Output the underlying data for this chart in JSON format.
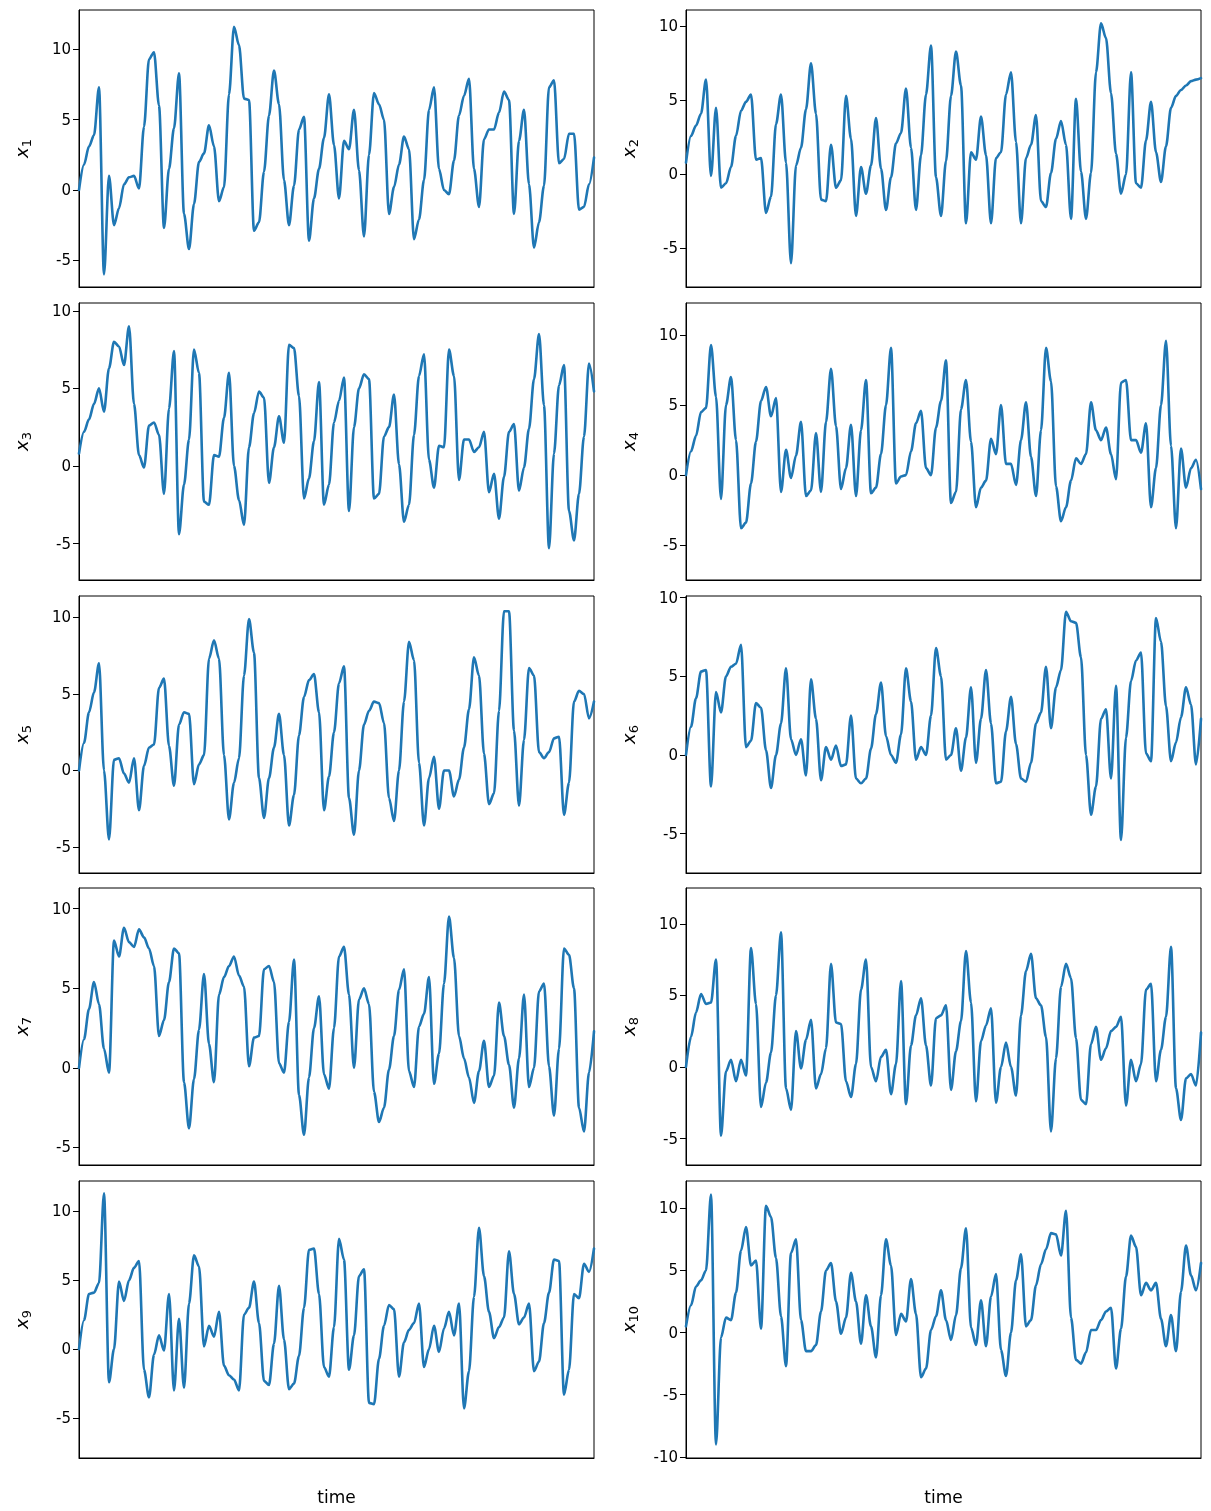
{
  "chart_data": [
    {
      "type": "line",
      "ylabel": "x$_{1}$",
      "categories": [
        null,
        null,
        null,
        null,
        null,
        null,
        null,
        null,
        null,
        null,
        null,
        null,
        null,
        null,
        null,
        null,
        null,
        null,
        null,
        null,
        null,
        null,
        null,
        null,
        null,
        null,
        null,
        null,
        null,
        null,
        null,
        null,
        null,
        null,
        null,
        null,
        null,
        null,
        null,
        null,
        null,
        null,
        null,
        null,
        null,
        null,
        null,
        null,
        null,
        null,
        null,
        null,
        null,
        null,
        null,
        null,
        null,
        null,
        null,
        null,
        null,
        null,
        null,
        null,
        null,
        null,
        null,
        null,
        null,
        null,
        null,
        null,
        null,
        null,
        null,
        null,
        null,
        null,
        null,
        null,
        null,
        null,
        null,
        null,
        null,
        null,
        null,
        null,
        null,
        null,
        null,
        null,
        null,
        null,
        null,
        null,
        null,
        null,
        null,
        null,
        null,
        null,
        null,
        null
      ],
      "ylim": [
        -6.9,
        12.8
      ],
      "yticks": [
        -5,
        0,
        5,
        10
      ],
      "tick_labels": "y",
      "series": [
        {
          "color": "#1f77b4",
          "values": [
            0,
            1.8,
            3.1,
            3.9,
            7.3,
            -6,
            1,
            -2.5,
            -1.3,
            0.4,
            0.9,
            1,
            0.1,
            4.5,
            9.3,
            9.8,
            6,
            -2.7,
            1.5,
            4.4,
            8.3,
            -1.7,
            -4.2,
            -1,
            2,
            2.6,
            4.6,
            3.1,
            -0.8,
            0.2,
            6.8,
            11.6,
            10.3,
            6.5,
            6.4,
            -2.9,
            -2.3,
            1.3,
            5.3,
            8.5,
            6.1,
            0.7,
            -2.5,
            0.3,
            4.3,
            5.2,
            -3.6,
            -0.6,
            1.5,
            3.7,
            6.8,
            3.2,
            -0.6,
            3.5,
            2.9,
            5.7,
            1.4,
            -3.3,
            2.5,
            6.9,
            6.1,
            5,
            -1.7,
            0.2,
            1.8,
            3.8,
            2.9,
            -3.5,
            -2.1,
            0.7,
            5.7,
            7.3,
            1.5,
            0,
            -0.3,
            2.1,
            5.3,
            6.7,
            7.9,
            1.5,
            -1.2,
            3.6,
            4.3,
            4.3,
            5.5,
            7,
            6.4,
            -1.7,
            3.5,
            5.7,
            0.4,
            -4.1,
            -2.3,
            0.3,
            7.3,
            7.8,
            1.9,
            2.2,
            4,
            4,
            -1.4,
            -1.2,
            0.4,
            2.3
          ]
        }
      ]
    },
    {
      "type": "line",
      "ylabel": "x$_{2}$",
      "categories": [
        null,
        null,
        null,
        null,
        null,
        null,
        null,
        null,
        null,
        null,
        null,
        null,
        null,
        null,
        null,
        null,
        null,
        null,
        null,
        null,
        null,
        null,
        null,
        null,
        null,
        null,
        null,
        null,
        null,
        null,
        null,
        null,
        null,
        null,
        null,
        null,
        null,
        null,
        null,
        null,
        null,
        null,
        null,
        null,
        null,
        null,
        null,
        null,
        null,
        null,
        null,
        null,
        null,
        null,
        null,
        null,
        null,
        null,
        null,
        null,
        null,
        null,
        null,
        null,
        null,
        null,
        null,
        null,
        null,
        null,
        null,
        null,
        null,
        null,
        null,
        null,
        null,
        null,
        null,
        null,
        null,
        null,
        null,
        null,
        null,
        null,
        null,
        null,
        null,
        null,
        null,
        null,
        null,
        null,
        null,
        null,
        null,
        null,
        null,
        null,
        null,
        null,
        null,
        null
      ],
      "ylim": [
        -7.6,
        11.1
      ],
      "yticks": [
        -5,
        0,
        5,
        10
      ],
      "tick_labels": "y",
      "series": [
        {
          "color": "#1f77b4",
          "values": [
            0.8,
            2.6,
            3.3,
            4.1,
            6.4,
            -0.1,
            4.5,
            -0.9,
            -0.6,
            0.5,
            2.6,
            4.3,
            4.9,
            5.4,
            1,
            1.1,
            -2.6,
            -1.5,
            3.4,
            5.4,
            0.8,
            -6,
            0.6,
            1.8,
            4.4,
            7.5,
            4.1,
            -1.7,
            -1.8,
            2,
            -0.9,
            -0.4,
            5.3,
            2.4,
            -2.8,
            0.5,
            -1.3,
            0.6,
            3.8,
            0.4,
            -2.4,
            -0.2,
            2.1,
            2.8,
            5.8,
            1.8,
            -2.4,
            1.3,
            5.4,
            8.7,
            -0.2,
            -2.8,
            0.9,
            5.3,
            8.3,
            6,
            -3.3,
            1.5,
            1,
            3.9,
            1.3,
            -3.3,
            1.1,
            1.5,
            5.4,
            6.9,
            2.2,
            -3.3,
            1.1,
            2,
            4,
            -1.8,
            -2.2,
            0.1,
            2.4,
            3.6,
            2,
            -3,
            5.1,
            0.2,
            -3,
            0.1,
            6.9,
            10.2,
            9.2,
            5.5,
            1.4,
            -1.3,
            0,
            6.9,
            -0.6,
            -0.9,
            2.3,
            4.9,
            1.5,
            -0.5,
            1.9,
            4.5,
            5.3,
            5.7,
            6,
            6.3,
            6.4,
            6.5
          ]
        }
      ]
    },
    {
      "type": "line",
      "ylabel": "x$_{3}$",
      "categories": [
        null,
        null,
        null,
        null,
        null,
        null,
        null,
        null,
        null,
        null,
        null,
        null,
        null,
        null,
        null,
        null,
        null,
        null,
        null,
        null,
        null,
        null,
        null,
        null,
        null,
        null,
        null,
        null,
        null,
        null,
        null,
        null,
        null,
        null,
        null,
        null,
        null,
        null,
        null,
        null,
        null,
        null,
        null,
        null,
        null,
        null,
        null,
        null,
        null,
        null,
        null,
        null,
        null,
        null,
        null,
        null,
        null,
        null,
        null,
        null,
        null,
        null,
        null,
        null,
        null,
        null,
        null,
        null,
        null,
        null,
        null,
        null,
        null,
        null,
        null,
        null,
        null,
        null,
        null,
        null,
        null,
        null,
        null,
        null,
        null,
        null,
        null,
        null,
        null,
        null,
        null,
        null,
        null,
        null,
        null,
        null,
        null,
        null,
        null,
        null,
        null,
        null,
        null,
        null
      ],
      "ylim": [
        -7.35,
        10.5
      ],
      "yticks": [
        -5,
        0,
        5,
        10
      ],
      "tick_labels": "y",
      "series": [
        {
          "color": "#1f77b4",
          "values": [
            0.8,
            2.2,
            3,
            4,
            5,
            3.5,
            6.3,
            8,
            7.7,
            6.5,
            9,
            4,
            0.7,
            -0.1,
            2.6,
            2.8,
            2,
            -1.8,
            3.7,
            7.4,
            -4.4,
            -1.2,
            1.7,
            7.5,
            6,
            -2.3,
            -2.5,
            0.7,
            0.6,
            3.1,
            6,
            0,
            -2.2,
            -3.8,
            1.2,
            3.4,
            4.8,
            4.4,
            -1.1,
            1.2,
            3.2,
            1.5,
            7.8,
            7.6,
            4.5,
            -2.1,
            -0.8,
            1.6,
            5.4,
            -2.5,
            -1.2,
            2.8,
            4.2,
            5.7,
            -2.9,
            2.5,
            5,
            5.9,
            5.6,
            -2.1,
            -1.8,
            1.9,
            2.5,
            4.6,
            0.1,
            -3.6,
            -2.5,
            2,
            5.8,
            7.2,
            0.4,
            -1.4,
            1.3,
            1.2,
            7.5,
            5.8,
            -0.9,
            1.7,
            1.7,
            0.9,
            1.2,
            2.2,
            -1.7,
            -0.5,
            -3.4,
            -0.7,
            2.2,
            2.7,
            -1.6,
            -0.1,
            2.4,
            5.6,
            8.5,
            3.9,
            -5.3,
            0.8,
            5.2,
            6.5,
            -2.9,
            -4.8,
            -1.8,
            1.9,
            6.6,
            4.8
          ]
        }
      ]
    },
    {
      "type": "line",
      "ylabel": "x$_{4}$",
      "categories": [
        null,
        null,
        null,
        null,
        null,
        null,
        null,
        null,
        null,
        null,
        null,
        null,
        null,
        null,
        null,
        null,
        null,
        null,
        null,
        null,
        null,
        null,
        null,
        null,
        null,
        null,
        null,
        null,
        null,
        null,
        null,
        null,
        null,
        null,
        null,
        null,
        null,
        null,
        null,
        null,
        null,
        null,
        null,
        null,
        null,
        null,
        null,
        null,
        null,
        null,
        null,
        null,
        null,
        null,
        null,
        null,
        null,
        null,
        null,
        null,
        null,
        null,
        null,
        null,
        null,
        null,
        null,
        null,
        null,
        null,
        null,
        null,
        null,
        null,
        null,
        null,
        null,
        null,
        null,
        null,
        null,
        null,
        null,
        null,
        null,
        null,
        null,
        null,
        null,
        null,
        null,
        null,
        null,
        null,
        null,
        null,
        null,
        null,
        null,
        null,
        null,
        null,
        null,
        null
      ],
      "ylim": [
        -7.5,
        12.3
      ],
      "yticks": [
        -5,
        0,
        5,
        10
      ],
      "tick_labels": "y",
      "series": [
        {
          "color": "#1f77b4",
          "values": [
            0,
            1.7,
            2.8,
            4.5,
            4.8,
            9.3,
            5.6,
            -1.7,
            5,
            7,
            2.5,
            -3.8,
            -3.4,
            -0.6,
            2.4,
            5.3,
            6.3,
            4.2,
            5.5,
            -1.2,
            1.8,
            -0.2,
            1.4,
            3.8,
            -1.5,
            -1.1,
            3,
            -1.2,
            3.8,
            7.6,
            3.5,
            -1,
            0.5,
            3.6,
            -1.5,
            3.2,
            6.8,
            -1.3,
            -0.9,
            1.5,
            5,
            9.1,
            -0.6,
            -0.1,
            0,
            1.7,
            3.7,
            4.6,
            0.5,
            0,
            3.4,
            5.3,
            8.2,
            -2,
            -1.2,
            4.7,
            6.8,
            2.4,
            -2.3,
            -0.9,
            -0.4,
            2.6,
            1.5,
            5,
            0.8,
            0.8,
            -0.7,
            2.5,
            5.2,
            1.3,
            -1.5,
            3.2,
            9.1,
            6.7,
            -0.8,
            -3.3,
            -2.3,
            -0.4,
            1.2,
            0.8,
            1.5,
            5.2,
            3.2,
            2.5,
            3.4,
            1.5,
            -0.3,
            6.6,
            6.8,
            2.5,
            2.5,
            1.6,
            3.7,
            -2.3,
            0.5,
            5,
            9.6,
            2.1,
            -3.8,
            1.9,
            -0.9,
            0.5,
            1.1,
            -1
          ]
        }
      ]
    },
    {
      "type": "line",
      "ylabel": "x$_{5}$",
      "categories": [
        null,
        null,
        null,
        null,
        null,
        null,
        null,
        null,
        null,
        null,
        null,
        null,
        null,
        null,
        null,
        null,
        null,
        null,
        null,
        null,
        null,
        null,
        null,
        null,
        null,
        null,
        null,
        null,
        null,
        null,
        null,
        null,
        null,
        null,
        null,
        null,
        null,
        null,
        null,
        null,
        null,
        null,
        null,
        null,
        null,
        null,
        null,
        null,
        null,
        null,
        null,
        null,
        null,
        null,
        null,
        null,
        null,
        null,
        null,
        null,
        null,
        null,
        null,
        null,
        null,
        null,
        null,
        null,
        null,
        null,
        null,
        null,
        null,
        null,
        null,
        null,
        null,
        null,
        null,
        null,
        null,
        null,
        null,
        null,
        null,
        null,
        null,
        null,
        null,
        null,
        null,
        null,
        null,
        null,
        null,
        null,
        null,
        null,
        null,
        null,
        null,
        null,
        null,
        null
      ],
      "ylim": [
        -6.7,
        11.4
      ],
      "yticks": [
        -5,
        0,
        5,
        10
      ],
      "tick_labels": "y",
      "series": [
        {
          "color": "#1f77b4",
          "values": [
            0,
            1.8,
            3.8,
            5.1,
            7,
            0,
            -4.5,
            0.7,
            0.8,
            -0.2,
            -0.8,
            0.8,
            -2.6,
            0.3,
            1.5,
            1.7,
            5.4,
            6,
            1.6,
            -1,
            3,
            3.8,
            3.7,
            -0.9,
            0.4,
            1,
            7.3,
            8.5,
            7.3,
            1,
            -3.2,
            -0.8,
            0.8,
            6.2,
            9.9,
            7.7,
            -0.5,
            -3.1,
            -0.5,
            1.5,
            3.7,
            1,
            -3.6,
            -1.6,
            2.3,
            4.8,
            5.9,
            6.3,
            3.8,
            -2.6,
            -0.4,
            2.5,
            5.7,
            6.8,
            -1.8,
            -4.2,
            0,
            3,
            3.9,
            4.5,
            4.4,
            3.1,
            -1.8,
            -3.3,
            0,
            4.5,
            8.4,
            7.2,
            0.5,
            -3.6,
            -0.5,
            0.9,
            -2.5,
            0,
            0,
            -1.7,
            -0.6,
            1.5,
            4,
            7.4,
            6.2,
            1.1,
            -2.2,
            -1.5,
            3.9,
            10.4,
            10.4,
            2.6,
            -2.3,
            2,
            6.7,
            6.2,
            1.2,
            0.8,
            1.2,
            2.1,
            2.2,
            -2.9,
            -0.8,
            4.5,
            5.2,
            5,
            3.4,
            4.5
          ]
        }
      ]
    },
    {
      "type": "line",
      "ylabel": "x$_{6}$",
      "categories": [
        null,
        null,
        null,
        null,
        null,
        null,
        null,
        null,
        null,
        null,
        null,
        null,
        null,
        null,
        null,
        null,
        null,
        null,
        null,
        null,
        null,
        null,
        null,
        null,
        null,
        null,
        null,
        null,
        null,
        null,
        null,
        null,
        null,
        null,
        null,
        null,
        null,
        null,
        null,
        null,
        null,
        null,
        null,
        null,
        null,
        null,
        null,
        null,
        null,
        null,
        null,
        null,
        null,
        null,
        null,
        null,
        null,
        null,
        null,
        null,
        null,
        null,
        null,
        null,
        null,
        null,
        null,
        null,
        null,
        null,
        null,
        null,
        null,
        null,
        null,
        null,
        null,
        null,
        null,
        null,
        null,
        null,
        null,
        null,
        null,
        null,
        null,
        null,
        null,
        null,
        null,
        null,
        null,
        null,
        null,
        null,
        null,
        null,
        null,
        null,
        null,
        null,
        null,
        null
      ],
      "ylim": [
        -7.5,
        10.1
      ],
      "yticks": [
        -5,
        0,
        5,
        10
      ],
      "tick_labels": "y",
      "series": [
        {
          "color": "#1f77b4",
          "values": [
            0,
            1.8,
            3.6,
            5.3,
            5.4,
            -2,
            4,
            2.7,
            5,
            5.6,
            5.8,
            7,
            0.5,
            0.9,
            3.3,
            3,
            0.3,
            -2.1,
            0,
            2,
            5.5,
            1,
            0,
            1,
            -1.3,
            4.8,
            2.3,
            -1.6,
            0.5,
            -0.3,
            0.6,
            -0.7,
            -0.6,
            2.5,
            -1.5,
            -1.8,
            -1.5,
            0.4,
            2.6,
            4.6,
            1.2,
            0,
            -0.5,
            1.3,
            5.5,
            3.4,
            -0.3,
            0.5,
            0,
            2.5,
            6.8,
            5,
            -0.3,
            0,
            1.7,
            -1,
            1.1,
            4.3,
            -0.5,
            2.3,
            5.4,
            2,
            -1.8,
            -1.7,
            1.5,
            3.7,
            0.7,
            -1.5,
            -1.7,
            -0.5,
            2,
            2.7,
            5.6,
            1.7,
            4.3,
            5.4,
            9.1,
            8.5,
            8.4,
            6.2,
            0,
            -3.8,
            -2,
            2.3,
            2.9,
            -1.5,
            4.4,
            -5.4,
            1.1,
            4.7,
            6,
            6.5,
            0.1,
            -0.4,
            8.7,
            7.2,
            3.1,
            -0.4,
            0.8,
            2.4,
            4.3,
            3.2,
            -0.6,
            2.3
          ]
        }
      ]
    },
    {
      "type": "line",
      "ylabel": "x$_{7}$",
      "categories": [
        null,
        null,
        null,
        null,
        null,
        null,
        null,
        null,
        null,
        null,
        null,
        null,
        null,
        null,
        null,
        null,
        null,
        null,
        null,
        null,
        null,
        null,
        null,
        null,
        null,
        null,
        null,
        null,
        null,
        null,
        null,
        null,
        null,
        null,
        null,
        null,
        null,
        null,
        null,
        null,
        null,
        null,
        null,
        null,
        null,
        null,
        null,
        null,
        null,
        null,
        null,
        null,
        null,
        null,
        null,
        null,
        null,
        null,
        null,
        null,
        null,
        null,
        null,
        null,
        null,
        null,
        null,
        null,
        null,
        null,
        null,
        null,
        null,
        null,
        null,
        null,
        null,
        null,
        null,
        null,
        null,
        null,
        null,
        null,
        null,
        null,
        null,
        null,
        null,
        null,
        null,
        null,
        null,
        null,
        null,
        null,
        null,
        null,
        null,
        null,
        null,
        null,
        null,
        null
      ],
      "ylim": [
        -6.1,
        11.3
      ],
      "yticks": [
        -5,
        0,
        5,
        10
      ],
      "tick_labels": "y",
      "series": [
        {
          "color": "#1f77b4",
          "values": [
            0,
            1.8,
            3.7,
            5.4,
            4,
            1.2,
            -0.3,
            8,
            7,
            8.8,
            7.9,
            7.6,
            8.7,
            8.2,
            7.5,
            6.4,
            2,
            3,
            5.4,
            7.5,
            7.2,
            -0.9,
            -3.8,
            -0.7,
            2.4,
            5.9,
            1.5,
            -0.9,
            4.6,
            5.7,
            6.4,
            7,
            5.8,
            5.1,
            0.1,
            1.9,
            2,
            6.2,
            6.4,
            5.4,
            0.3,
            -0.3,
            2.9,
            6.8,
            -1.7,
            -4.2,
            -0.6,
            2.5,
            4.5,
            -0.4,
            -1.3,
            2.5,
            7,
            7.6,
            4.6,
            0,
            4.3,
            5,
            4,
            -1.5,
            -3.4,
            -2.5,
            -0.1,
            2,
            4.9,
            6.2,
            -0.2,
            -1.2,
            2.6,
            3.4,
            5.7,
            -1,
            0.9,
            5.3,
            9.5,
            6.9,
            2,
            0.6,
            -0.6,
            -2.2,
            -0.2,
            1.7,
            -1.2,
            -0.5,
            4.1,
            2,
            0.2,
            -2.5,
            0.6,
            4.6,
            -1.2,
            0,
            4.8,
            5.3,
            0.1,
            -3,
            1.2,
            7.5,
            7.1,
            5,
            -2.5,
            -4,
            -0.3,
            2.3
          ]
        }
      ]
    },
    {
      "type": "line",
      "ylabel": "x$_{8}$",
      "categories": [
        null,
        null,
        null,
        null,
        null,
        null,
        null,
        null,
        null,
        null,
        null,
        null,
        null,
        null,
        null,
        null,
        null,
        null,
        null,
        null,
        null,
        null,
        null,
        null,
        null,
        null,
        null,
        null,
        null,
        null,
        null,
        null,
        null,
        null,
        null,
        null,
        null,
        null,
        null,
        null,
        null,
        null,
        null,
        null,
        null,
        null,
        null,
        null,
        null,
        null,
        null,
        null,
        null,
        null,
        null,
        null,
        null,
        null,
        null,
        null,
        null,
        null,
        null,
        null,
        null,
        null,
        null,
        null,
        null,
        null,
        null,
        null,
        null,
        null,
        null,
        null,
        null,
        null,
        null,
        null,
        null,
        null,
        null,
        null,
        null,
        null,
        null,
        null,
        null,
        null,
        null,
        null,
        null,
        null,
        null,
        null,
        null,
        null,
        null,
        null,
        null,
        null,
        null,
        null
      ],
      "ylim": [
        -6.85,
        12.5
      ],
      "yticks": [
        -5,
        0,
        5,
        10
      ],
      "tick_labels": "y",
      "series": [
        {
          "color": "#1f77b4",
          "values": [
            0,
            2.1,
            3.8,
            5.1,
            4.4,
            4.5,
            7.5,
            -4.8,
            -0.3,
            0.5,
            -1,
            0.5,
            -0.6,
            8.3,
            4.4,
            -2.8,
            -1.1,
            1,
            5,
            9.4,
            -1.5,
            -3,
            2.5,
            -0.1,
            1.9,
            3.3,
            -1.5,
            -0.5,
            1.3,
            7.2,
            3.1,
            3,
            -1,
            -2.1,
            0.2,
            5.4,
            7.5,
            0,
            -1,
            0.7,
            1.2,
            -1.9,
            0.2,
            6,
            -2.6,
            1.5,
            3.6,
            4.8,
            1.5,
            -1.3,
            3.4,
            3.6,
            4.3,
            -1.6,
            1.1,
            3.2,
            8.1,
            4.5,
            -2.4,
            1.8,
            2.9,
            4.1,
            -2.5,
            0,
            1.7,
            0,
            -2,
            3.6,
            6.7,
            7.9,
            4.8,
            4.3,
            2.1,
            -4.5,
            0.6,
            5.6,
            7.2,
            6.2,
            2,
            -2.3,
            -2.6,
            1.6,
            2.8,
            0.5,
            1.3,
            2.5,
            2.8,
            3.5,
            -2.7,
            0.5,
            -1,
            0.2,
            5.4,
            5.8,
            -1,
            1.2,
            3.5,
            8.4,
            -1.5,
            -3.7,
            -0.8,
            -0.5,
            -1.3,
            2.4
          ]
        }
      ]
    },
    {
      "type": "line",
      "ylabel": "x$_{9}$",
      "xlabel": "time",
      "categories": [
        null,
        null,
        null,
        null,
        null,
        null,
        null,
        null,
        null,
        null,
        null,
        null,
        null,
        null,
        null,
        null,
        null,
        null,
        null,
        null,
        null,
        null,
        null,
        null,
        null,
        null,
        null,
        null,
        null,
        null,
        null,
        null,
        null,
        null,
        null,
        null,
        null,
        null,
        null,
        null,
        null,
        null,
        null,
        null,
        null,
        null,
        null,
        null,
        null,
        null,
        null,
        null,
        null,
        null,
        null,
        null,
        null,
        null,
        null,
        null,
        null,
        null,
        null,
        null,
        null,
        null,
        null,
        null,
        null,
        null,
        null,
        null,
        null,
        null,
        null,
        null,
        null,
        null,
        null,
        null,
        null,
        null,
        null,
        null,
        null,
        null,
        null,
        null,
        null,
        null,
        null,
        null,
        null,
        null,
        null,
        null,
        null,
        null,
        null,
        null,
        null,
        null,
        null,
        null
      ],
      "ylim": [
        -7.9,
        12.2
      ],
      "yticks": [
        -5,
        0,
        5,
        10
      ],
      "tick_labels": "y",
      "series": [
        {
          "color": "#1f77b4",
          "values": [
            0,
            2.1,
            4,
            4.1,
            4.8,
            11.3,
            -2.4,
            0,
            4.9,
            3.5,
            5,
            5.9,
            6.4,
            -1.5,
            -3.5,
            -0.4,
            1,
            -0.1,
            4,
            -3,
            2.2,
            -2.8,
            3.3,
            6.8,
            6,
            0.2,
            1.7,
            0.9,
            2.7,
            -1.2,
            -1.9,
            -2.2,
            -3,
            2.5,
            3,
            4.9,
            1.9,
            -2.3,
            -2.6,
            0.4,
            4.6,
            0.7,
            -2.9,
            -2.5,
            -0.5,
            3,
            7.2,
            7.3,
            4,
            -1.3,
            -2,
            1.6,
            8,
            6.5,
            -1.5,
            1,
            5.3,
            5.8,
            -3.9,
            -4,
            -0.7,
            1.7,
            3.2,
            2.9,
            -2,
            0.5,
            1.4,
            1.9,
            3.3,
            -1.3,
            0,
            1.7,
            -0.2,
            1.5,
            2.7,
            1,
            3.3,
            -4.3,
            -1.6,
            3.8,
            8.8,
            5.3,
            2.7,
            0.8,
            1.6,
            2.3,
            7.1,
            4,
            1.8,
            2.3,
            3.3,
            -1.6,
            -0.9,
            1.9,
            4.1,
            6.5,
            6.4,
            -3.3,
            -1.5,
            4,
            3.7,
            6.2,
            5.6,
            7.3
          ]
        }
      ]
    },
    {
      "type": "line",
      "ylabel": "x$_{10}$",
      "xlabel": "time",
      "categories": [
        null,
        null,
        null,
        null,
        null,
        null,
        null,
        null,
        null,
        null,
        null,
        null,
        null,
        null,
        null,
        null,
        null,
        null,
        null,
        null,
        null,
        null,
        null,
        null,
        null,
        null,
        null,
        null,
        null,
        null,
        null,
        null,
        null,
        null,
        null,
        null,
        null,
        null,
        null,
        null,
        null,
        null,
        null,
        null,
        null,
        null,
        null,
        null,
        null,
        null,
        null,
        null,
        null,
        null,
        null,
        null,
        null,
        null,
        null,
        null,
        null,
        null,
        null,
        null,
        null,
        null,
        null,
        null,
        null,
        null,
        null,
        null,
        null,
        null,
        null,
        null,
        null,
        null,
        null,
        null,
        null,
        null,
        null,
        null,
        null,
        null,
        null,
        null,
        null,
        null,
        null,
        null,
        null,
        null,
        null,
        null,
        null,
        null,
        null,
        null,
        null,
        null,
        null,
        null
      ],
      "ylim": [
        -10.1,
        12.2
      ],
      "yticks": [
        -10,
        -5,
        0,
        5,
        10
      ],
      "tick_labels": "y",
      "series": [
        {
          "color": "#1f77b4",
          "values": [
            0.5,
            2.2,
            3.7,
            4.2,
            5,
            11.1,
            -9,
            -0.4,
            1.2,
            1,
            3.2,
            6.6,
            8.5,
            5.4,
            5.8,
            0.3,
            10.2,
            9.3,
            6,
            1.3,
            -2.7,
            6.4,
            7.5,
            1,
            -1.5,
            -1.5,
            -1,
            1.7,
            5,
            5.6,
            2.5,
            -0.1,
            1.2,
            4.8,
            2.5,
            -0.9,
            3,
            0.5,
            -2,
            3,
            7.5,
            5.4,
            -0.2,
            1.5,
            0.9,
            4.3,
            1.5,
            -3.6,
            -2.9,
            0.2,
            1.3,
            3.4,
            1,
            -0.6,
            1.4,
            5.2,
            8.4,
            0.4,
            -1,
            2.6,
            -1.1,
            2.9,
            4.7,
            -1.4,
            -3.5,
            0,
            4.2,
            6.3,
            0.5,
            1,
            3.8,
            5.5,
            6.7,
            8,
            7.9,
            6.2,
            9.8,
            1.2,
            -2.2,
            -2.5,
            -1.6,
            0.2,
            0.2,
            1,
            1.7,
            2,
            -2.9,
            0.3,
            4.5,
            7.8,
            6.9,
            3,
            4,
            3.4,
            4,
            1.1,
            -1.1,
            1.4,
            -1.5,
            3.3,
            7,
            4.6,
            3.4,
            5.6
          ]
        }
      ]
    }
  ]
}
